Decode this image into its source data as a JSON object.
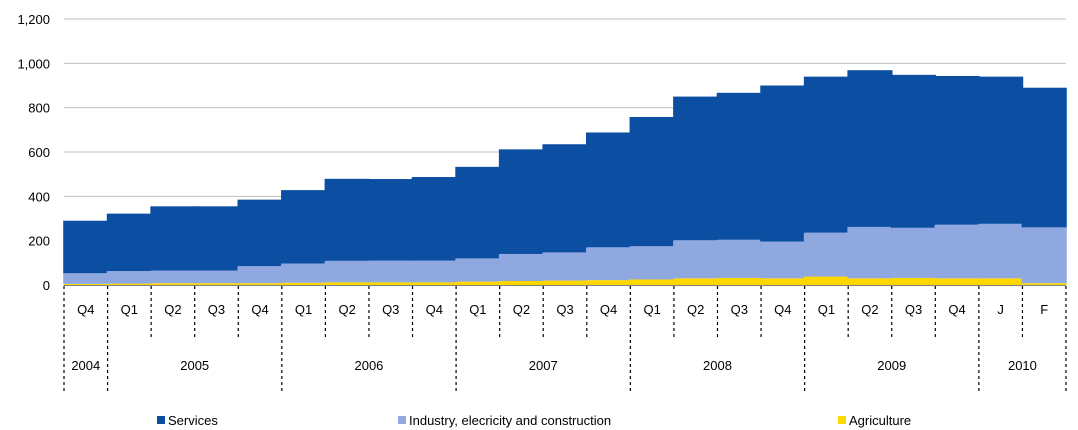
{
  "chart_data": {
    "type": "bar",
    "stacked": true,
    "ylim": [
      0,
      1200
    ],
    "yticks": [
      0,
      200,
      400,
      600,
      800,
      1000,
      1200
    ],
    "ytick_labels": [
      "0",
      "200",
      "400",
      "600",
      "800",
      "1,000",
      "1,200"
    ],
    "grid": true,
    "legend_position": "bottom",
    "categories": [
      "Q4",
      "Q1",
      "Q2",
      "Q3",
      "Q4",
      "Q1",
      "Q2",
      "Q3",
      "Q4",
      "Q1",
      "Q2",
      "Q3",
      "Q4",
      "Q1",
      "Q2",
      "Q3",
      "Q4",
      "Q1",
      "Q2",
      "Q3",
      "Q4",
      "J",
      "F"
    ],
    "year_groups": [
      {
        "label": "2004",
        "count": 1
      },
      {
        "label": "2005",
        "count": 4
      },
      {
        "label": "2006",
        "count": 4
      },
      {
        "label": "2007",
        "count": 4
      },
      {
        "label": "2008",
        "count": 4
      },
      {
        "label": "2009",
        "count": 4
      },
      {
        "label": "2010",
        "count": 2
      }
    ],
    "series": [
      {
        "name": "Agriculture",
        "color": "#ffd700",
        "values": [
          5,
          6,
          8,
          8,
          8,
          10,
          12,
          12,
          12,
          15,
          18,
          20,
          22,
          25,
          30,
          32,
          30,
          38,
          30,
          32,
          30,
          30,
          8
        ]
      },
      {
        "name": "Industry, elecricity and construction",
        "color": "#8fa8df",
        "values": [
          48,
          57,
          57,
          57,
          77,
          87,
          97,
          98,
          98,
          105,
          122,
          127,
          148,
          150,
          172,
          172,
          166,
          198,
          232,
          226,
          242,
          246,
          252
        ]
      },
      {
        "name": "Services",
        "color": "#0b4ea2",
        "values": [
          237,
          259,
          290,
          290,
          300,
          331,
          370,
          368,
          377,
          413,
          472,
          488,
          518,
          583,
          648,
          663,
          704,
          704,
          707,
          690,
          671,
          664,
          630
        ]
      }
    ],
    "legend": [
      {
        "name": "Services",
        "color": "#0b4ea2"
      },
      {
        "name": "Industry, elecricity and construction",
        "color": "#8fa8df"
      },
      {
        "name": "Agriculture",
        "color": "#ffd700"
      }
    ]
  }
}
